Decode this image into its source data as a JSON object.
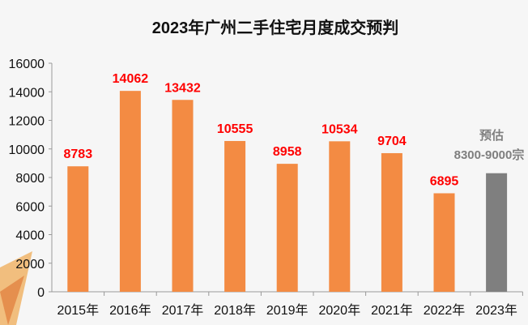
{
  "chart_data": {
    "type": "bar",
    "title": "2023年广州二手住宅月度成交预判",
    "categories": [
      "2015年",
      "2016年",
      "2017年",
      "2018年",
      "2019年",
      "2020年",
      "2021年",
      "2022年",
      "2023年"
    ],
    "values": [
      8783,
      14062,
      13432,
      10555,
      8958,
      10534,
      9704,
      6895,
      8300
    ],
    "data_labels": [
      "8783",
      "14062",
      "13432",
      "10555",
      "8958",
      "10534",
      "9704",
      "6895",
      ""
    ],
    "annotation": {
      "line1": "预估",
      "line2": "8300-9000宗"
    },
    "ylim": [
      0,
      16000
    ],
    "yticks": [
      "0",
      "2000",
      "4000",
      "6000",
      "8000",
      "10000",
      "12000",
      "14000",
      "16000"
    ],
    "grid": false,
    "legend": "none",
    "colors": {
      "actual": "#f38b43",
      "forecast": "#7f7f7f",
      "data_label": "#ff0000"
    }
  }
}
